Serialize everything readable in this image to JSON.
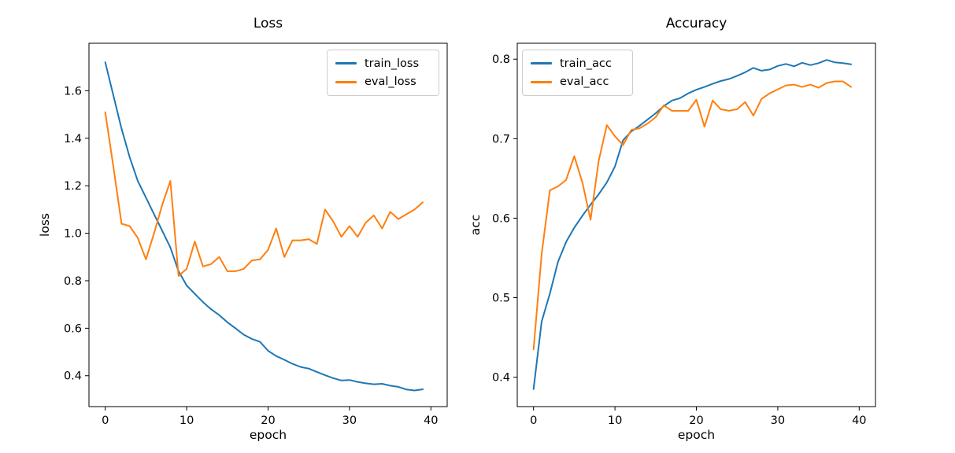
{
  "figure": {
    "background_color": "#ffffff",
    "spine_color": "#000000",
    "accent_blue": "#1f77b4",
    "accent_orange": "#ff7f0e"
  },
  "chart_data": [
    {
      "type": "line",
      "title": "Loss",
      "xlabel": "epoch",
      "ylabel": "loss",
      "xlim": [
        -2,
        42
      ],
      "ylim": [
        0.27,
        1.8
      ],
      "grid": false,
      "legend_position": "top-right",
      "xticks": {
        "values": [
          0,
          10,
          20,
          30,
          40
        ],
        "labels": [
          "0",
          "10",
          "20",
          "30",
          "40"
        ]
      },
      "yticks": {
        "values": [
          0.4,
          0.6,
          0.8,
          1.0,
          1.2,
          1.4,
          1.6
        ],
        "labels": [
          "0.4",
          "0.6",
          "0.8",
          "1.0",
          "1.2",
          "1.4",
          "1.6"
        ]
      },
      "x": [
        0,
        1,
        2,
        3,
        4,
        5,
        6,
        7,
        8,
        9,
        10,
        11,
        12,
        13,
        14,
        15,
        16,
        17,
        18,
        19,
        20,
        21,
        22,
        23,
        24,
        25,
        26,
        27,
        28,
        29,
        30,
        31,
        32,
        33,
        34,
        35,
        36,
        37,
        38,
        39
      ],
      "series": [
        {
          "name": "train_loss",
          "color": "#1f77b4",
          "values": [
            1.72,
            1.58,
            1.44,
            1.32,
            1.22,
            1.15,
            1.08,
            1.01,
            0.94,
            0.84,
            0.78,
            0.745,
            0.71,
            0.68,
            0.655,
            0.625,
            0.6,
            0.573,
            0.555,
            0.543,
            0.505,
            0.483,
            0.467,
            0.45,
            0.437,
            0.43,
            0.416,
            0.402,
            0.39,
            0.38,
            0.382,
            0.374,
            0.368,
            0.364,
            0.366,
            0.358,
            0.353,
            0.342,
            0.338,
            0.343
          ]
        },
        {
          "name": "eval_loss",
          "color": "#ff7f0e",
          "values": [
            1.51,
            1.28,
            1.04,
            1.03,
            0.98,
            0.89,
            1.0,
            1.12,
            1.22,
            0.82,
            0.85,
            0.965,
            0.86,
            0.87,
            0.9,
            0.84,
            0.84,
            0.85,
            0.885,
            0.89,
            0.93,
            1.02,
            0.9,
            0.97,
            0.97,
            0.975,
            0.955,
            1.1,
            1.05,
            0.985,
            1.03,
            0.985,
            1.045,
            1.075,
            1.02,
            1.09,
            1.06,
            1.08,
            1.1,
            1.13
          ]
        }
      ]
    },
    {
      "type": "line",
      "title": "Accuracy",
      "xlabel": "epoch",
      "ylabel": "acc",
      "xlim": [
        -2,
        42
      ],
      "ylim": [
        0.363,
        0.82
      ],
      "grid": false,
      "legend_position": "top-left",
      "xticks": {
        "values": [
          0,
          10,
          20,
          30,
          40
        ],
        "labels": [
          "0",
          "10",
          "20",
          "30",
          "40"
        ]
      },
      "yticks": {
        "values": [
          0.4,
          0.5,
          0.6,
          0.7,
          0.8
        ],
        "labels": [
          "0.4",
          "0.5",
          "0.6",
          "0.7",
          "0.8"
        ]
      },
      "x": [
        0,
        1,
        2,
        3,
        4,
        5,
        6,
        7,
        8,
        9,
        10,
        11,
        12,
        13,
        14,
        15,
        16,
        17,
        18,
        19,
        20,
        21,
        22,
        23,
        24,
        25,
        26,
        27,
        28,
        29,
        30,
        31,
        32,
        33,
        34,
        35,
        36,
        37,
        38,
        39
      ],
      "series": [
        {
          "name": "train_acc",
          "color": "#1f77b4",
          "values": [
            0.385,
            0.47,
            0.505,
            0.545,
            0.57,
            0.588,
            0.603,
            0.617,
            0.63,
            0.645,
            0.665,
            0.698,
            0.709,
            0.716,
            0.724,
            0.732,
            0.741,
            0.748,
            0.751,
            0.757,
            0.7615,
            0.765,
            0.769,
            0.7725,
            0.775,
            0.779,
            0.7835,
            0.789,
            0.7855,
            0.787,
            0.7915,
            0.794,
            0.791,
            0.7955,
            0.7925,
            0.795,
            0.799,
            0.796,
            0.795,
            0.7935
          ]
        },
        {
          "name": "eval_acc",
          "color": "#ff7f0e",
          "values": [
            0.435,
            0.555,
            0.635,
            0.64,
            0.648,
            0.678,
            0.645,
            0.598,
            0.672,
            0.717,
            0.703,
            0.692,
            0.711,
            0.713,
            0.719,
            0.727,
            0.742,
            0.735,
            0.735,
            0.735,
            0.749,
            0.715,
            0.748,
            0.737,
            0.735,
            0.737,
            0.746,
            0.729,
            0.75,
            0.757,
            0.762,
            0.767,
            0.768,
            0.765,
            0.768,
            0.764,
            0.77,
            0.772,
            0.772,
            0.765
          ]
        }
      ]
    }
  ]
}
